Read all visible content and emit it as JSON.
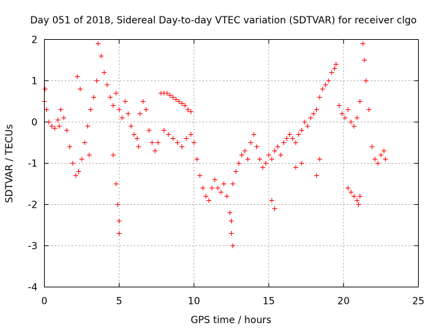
{
  "chart_data": {
    "type": "scatter",
    "title": "Day 051 of 2018, Sidereal Day-to-day VTEC variation (SDTVAR) for receiver clgo",
    "xlabel": "GPS time / hours",
    "ylabel": "SDTVAR / TECUs",
    "xlim": [
      0,
      25
    ],
    "ylim": [
      -4,
      2
    ],
    "xticks": [
      0,
      5,
      10,
      15,
      20,
      25
    ],
    "yticks": [
      -4,
      -3,
      -2,
      -1,
      0,
      1,
      2
    ],
    "grid": true,
    "marker": "+",
    "color": "#ff0000",
    "series": [
      {
        "name": "SDTVAR",
        "points": [
          [
            0.0,
            0.5
          ],
          [
            0.15,
            0.3
          ],
          [
            0.3,
            0.0
          ],
          [
            0.5,
            -0.1
          ],
          [
            0.7,
            -0.15
          ],
          [
            0.9,
            0.05
          ],
          [
            1.1,
            0.3
          ],
          [
            1.3,
            0.1
          ],
          [
            1.5,
            -0.2
          ],
          [
            1.7,
            -0.6
          ],
          [
            1.9,
            -1.0
          ],
          [
            2.1,
            -1.3
          ],
          [
            2.3,
            -1.2
          ],
          [
            2.5,
            -0.9
          ],
          [
            2.7,
            -0.5
          ],
          [
            2.9,
            -0.1
          ],
          [
            3.1,
            0.3
          ],
          [
            3.3,
            0.6
          ],
          [
            3.5,
            1.0
          ],
          [
            3.6,
            1.9
          ],
          [
            3.8,
            1.6
          ],
          [
            4.0,
            1.2
          ],
          [
            4.2,
            0.9
          ],
          [
            4.4,
            0.6
          ],
          [
            4.6,
            0.4
          ],
          [
            4.8,
            0.7
          ],
          [
            5.0,
            0.3
          ],
          [
            5.2,
            0.1
          ],
          [
            5.4,
            0.5
          ],
          [
            5.6,
            0.2
          ],
          [
            5.8,
            -0.1
          ],
          [
            6.0,
            -0.3
          ],
          [
            6.2,
            -0.4
          ],
          [
            6.4,
            0.2
          ],
          [
            6.6,
            0.5
          ],
          [
            6.8,
            0.3
          ],
          [
            7.0,
            -0.2
          ],
          [
            7.2,
            -0.5
          ],
          [
            7.4,
            -0.7
          ],
          [
            7.6,
            -0.5
          ],
          [
            7.8,
            0.7
          ],
          [
            8.0,
            0.7
          ],
          [
            8.2,
            0.7
          ],
          [
            8.4,
            0.65
          ],
          [
            8.6,
            0.6
          ],
          [
            8.8,
            0.55
          ],
          [
            9.0,
            0.5
          ],
          [
            9.2,
            0.45
          ],
          [
            9.4,
            0.4
          ],
          [
            9.6,
            0.3
          ],
          [
            9.8,
            0.25
          ],
          [
            8.0,
            -0.2
          ],
          [
            8.3,
            -0.3
          ],
          [
            8.6,
            -0.4
          ],
          [
            8.9,
            -0.5
          ],
          [
            9.2,
            -0.6
          ],
          [
            9.5,
            -0.4
          ],
          [
            9.8,
            -0.3
          ],
          [
            10.0,
            -0.5
          ],
          [
            10.2,
            -0.9
          ],
          [
            10.4,
            -1.3
          ],
          [
            10.6,
            -1.6
          ],
          [
            10.8,
            -1.8
          ],
          [
            11.0,
            -1.9
          ],
          [
            11.2,
            -1.6
          ],
          [
            11.4,
            -1.4
          ],
          [
            11.6,
            -1.6
          ],
          [
            11.8,
            -1.7
          ],
          [
            12.0,
            -1.5
          ],
          [
            12.2,
            -1.8
          ],
          [
            12.4,
            -2.2
          ],
          [
            12.6,
            -1.5
          ],
          [
            12.8,
            -1.2
          ],
          [
            13.0,
            -1.0
          ],
          [
            13.2,
            -0.8
          ],
          [
            13.4,
            -0.7
          ],
          [
            13.6,
            -0.9
          ],
          [
            13.8,
            -0.5
          ],
          [
            14.0,
            -0.3
          ],
          [
            14.2,
            -0.6
          ],
          [
            14.4,
            -0.9
          ],
          [
            14.6,
            -1.1
          ],
          [
            14.8,
            -1.0
          ],
          [
            15.0,
            -0.8
          ],
          [
            15.2,
            -0.9
          ],
          [
            15.4,
            -0.7
          ],
          [
            15.6,
            -0.6
          ],
          [
            15.8,
            -0.8
          ],
          [
            16.0,
            -0.5
          ],
          [
            16.2,
            -0.4
          ],
          [
            16.4,
            -0.3
          ],
          [
            16.6,
            -0.4
          ],
          [
            16.8,
            -0.5
          ],
          [
            17.0,
            -0.3
          ],
          [
            17.2,
            -0.2
          ],
          [
            17.4,
            0.0
          ],
          [
            17.6,
            -0.1
          ],
          [
            17.8,
            0.1
          ],
          [
            18.0,
            0.2
          ],
          [
            18.2,
            0.3
          ],
          [
            18.4,
            0.6
          ],
          [
            18.6,
            0.8
          ],
          [
            18.8,
            0.9
          ],
          [
            19.0,
            1.0
          ],
          [
            19.2,
            1.2
          ],
          [
            19.4,
            1.3
          ],
          [
            19.5,
            1.4
          ],
          [
            19.7,
            0.4
          ],
          [
            19.9,
            0.2
          ],
          [
            20.1,
            0.1
          ],
          [
            20.3,
            0.3
          ],
          [
            20.5,
            0.0
          ],
          [
            20.7,
            -0.1
          ],
          [
            20.9,
            0.1
          ],
          [
            21.1,
            0.5
          ],
          [
            21.3,
            1.9
          ],
          [
            21.4,
            1.5
          ],
          [
            21.5,
            1.0
          ],
          [
            21.7,
            0.3
          ],
          [
            21.9,
            -0.6
          ],
          [
            22.1,
            -0.9
          ],
          [
            22.3,
            -1.0
          ],
          [
            22.5,
            -0.8
          ],
          [
            22.7,
            -0.7
          ],
          [
            22.8,
            -0.9
          ],
          [
            20.3,
            -1.6
          ],
          [
            20.5,
            -1.7
          ],
          [
            20.7,
            -1.8
          ],
          [
            20.9,
            -1.9
          ],
          [
            21.0,
            -2.0
          ],
          [
            21.1,
            -1.8
          ],
          [
            4.8,
            -1.5
          ],
          [
            4.9,
            -2.0
          ],
          [
            5.0,
            -2.4
          ],
          [
            5.0,
            -2.7
          ],
          [
            12.5,
            -2.4
          ],
          [
            12.5,
            -2.7
          ],
          [
            12.6,
            -3.0
          ],
          [
            15.2,
            -1.9
          ],
          [
            15.4,
            -2.1
          ],
          [
            18.2,
            -1.3
          ],
          [
            18.4,
            -0.9
          ],
          [
            17.2,
            -1.0
          ],
          [
            16.8,
            -1.1
          ],
          [
            2.2,
            1.1
          ],
          [
            2.4,
            0.8
          ],
          [
            4.6,
            -0.8
          ],
          [
            6.3,
            -0.6
          ],
          [
            3.0,
            -0.8
          ],
          [
            1.0,
            -0.1
          ],
          [
            0.05,
            0.8
          ]
        ]
      }
    ]
  }
}
